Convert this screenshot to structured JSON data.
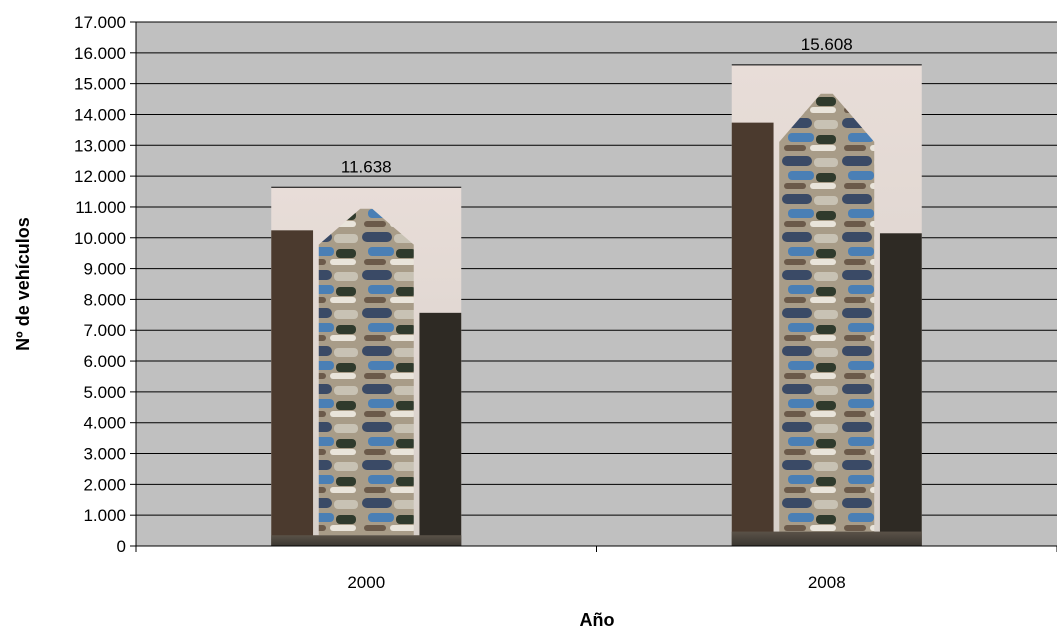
{
  "chart_data": {
    "type": "bar",
    "title": "",
    "xlabel": "Año",
    "ylabel": "Nº de vehículos",
    "categories": [
      "2000",
      "2008"
    ],
    "values": [
      11638,
      15608
    ],
    "data_labels": [
      "11.638",
      "15.608"
    ],
    "ylim": [
      0,
      17000
    ],
    "y_ticks": [
      0,
      1000,
      2000,
      3000,
      4000,
      5000,
      6000,
      7000,
      8000,
      9000,
      10000,
      11000,
      12000,
      13000,
      14000,
      15000,
      16000,
      17000
    ],
    "y_tick_labels": [
      "0",
      "1.000",
      "2.000",
      "3.000",
      "4.000",
      "5.000",
      "6.000",
      "7.000",
      "8.000",
      "9.000",
      "10.000",
      "11.000",
      "12.000",
      "13.000",
      "14.000",
      "15.000",
      "16.000",
      "17.000"
    ],
    "grid": true,
    "legend": "none",
    "bar_fill": "picture of a tower of stacked cars"
  },
  "colors": {
    "plot_background": "#c0c0c0",
    "gridline": "#000000",
    "axis": "#000000",
    "text": "#000000"
  }
}
